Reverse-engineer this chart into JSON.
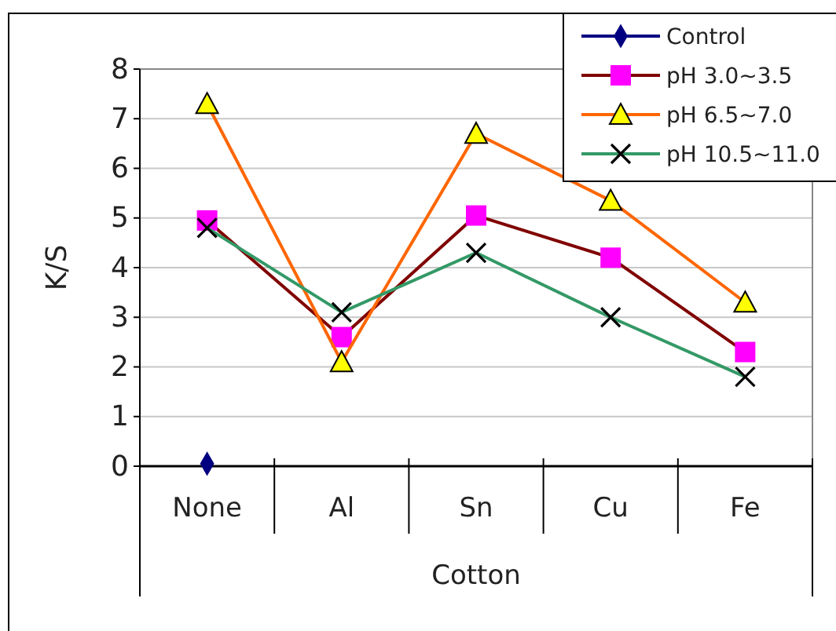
{
  "chart_data": {
    "type": "line",
    "ylabel": "K/S",
    "xlabel": "Cotton",
    "categories": [
      "None",
      "Al",
      "Sn",
      "Cu",
      "Fe"
    ],
    "ylim": [
      0,
      8
    ],
    "yticks": [
      0,
      1,
      2,
      3,
      4,
      5,
      6,
      7,
      8
    ],
    "grid": "y",
    "legend": "top right",
    "series": [
      {
        "name": "Control",
        "color": "#000080",
        "marker": "diamond",
        "values": [
          0.05,
          null,
          null,
          null,
          null
        ]
      },
      {
        "name": "pH 3.0~3.5",
        "color": "#800000",
        "marker": "square",
        "values": [
          4.95,
          2.6,
          5.05,
          4.2,
          2.3
        ]
      },
      {
        "name": "pH 6.5~7.0",
        "color": "#ff6600",
        "marker": "triangle",
        "values": [
          7.3,
          2.1,
          6.7,
          5.35,
          3.3
        ]
      },
      {
        "name": "pH 10.5~11.0",
        "color": "#339966",
        "marker": "cross",
        "values": [
          4.8,
          3.1,
          4.3,
          3.0,
          1.8
        ]
      }
    ]
  }
}
